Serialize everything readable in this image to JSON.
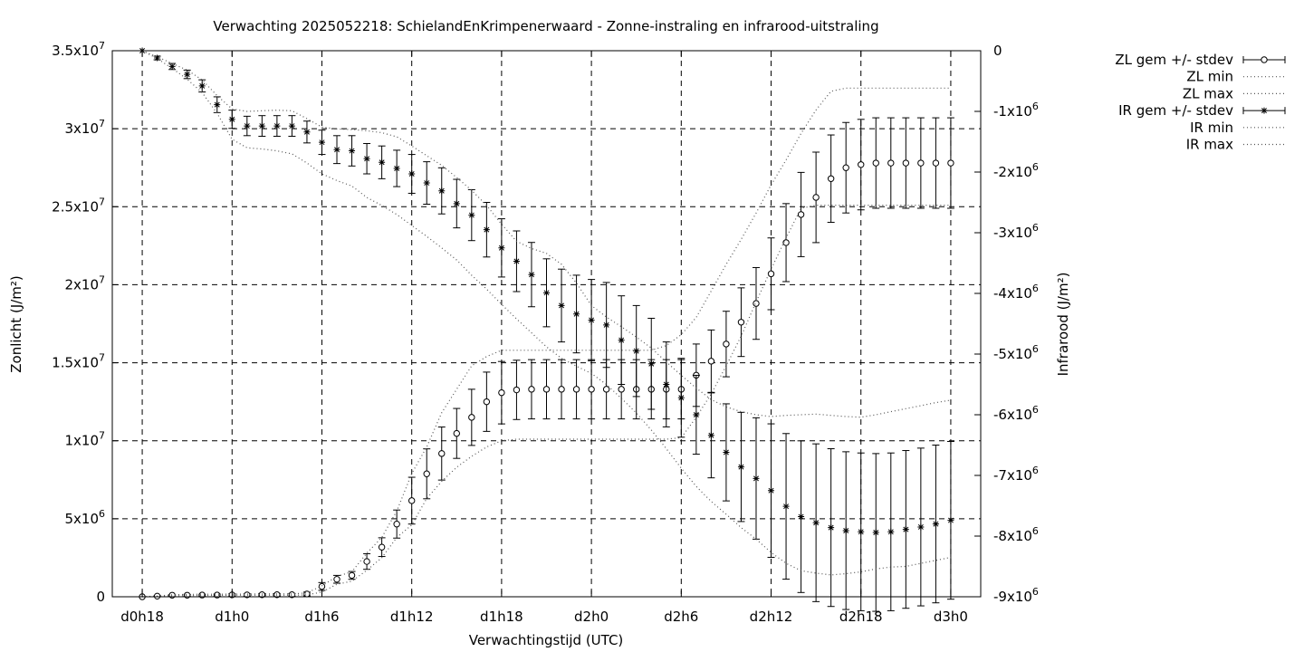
{
  "chart_data": {
    "type": "scatter",
    "title": "Verwachting 2025052218: SchielandEnKrimpenerwaard - Zonne-instraling en infrarood-uitstraling",
    "xlabel": "Verwachtingstijd (UTC)",
    "ylabel_left": "Zonlicht (J/m²)",
    "ylabel_right": "Infrarood (J/m²)",
    "x_unit": "hours",
    "xlim": [
      18,
      72
    ],
    "x_tick_values": [
      18,
      24,
      30,
      36,
      42,
      48,
      54,
      60,
      66,
      72
    ],
    "x_tick_labels": [
      "d0h18",
      "d1h0",
      "d1h6",
      "d1h12",
      "d1h18",
      "d2h0",
      "d2h6",
      "d2h12",
      "d2h18",
      "d3h0"
    ],
    "ylim_left": [
      0,
      35000000
    ],
    "y_left_tick_values": [
      0,
      5000000,
      10000000,
      15000000,
      20000000,
      25000000,
      30000000,
      35000000
    ],
    "y_left_tick_labels": [
      {
        "base": "0",
        "exp": ""
      },
      {
        "base": "5x10",
        "exp": "6"
      },
      {
        "base": "1x10",
        "exp": "7"
      },
      {
        "base": "1.5x10",
        "exp": "7"
      },
      {
        "base": "2x10",
        "exp": "7"
      },
      {
        "base": "2.5x10",
        "exp": "7"
      },
      {
        "base": "3x10",
        "exp": "7"
      },
      {
        "base": "3.5x10",
        "exp": "7"
      }
    ],
    "ylim_right": [
      -9000000,
      0
    ],
    "y_right_tick_values": [
      0,
      -1000000,
      -2000000,
      -3000000,
      -4000000,
      -5000000,
      -6000000,
      -7000000,
      -8000000,
      -9000000
    ],
    "y_right_tick_labels": [
      {
        "base": "0",
        "exp": ""
      },
      {
        "base": "-1x10",
        "exp": "6"
      },
      {
        "base": "-2x10",
        "exp": "6"
      },
      {
        "base": "-3x10",
        "exp": "6"
      },
      {
        "base": "-4x10",
        "exp": "6"
      },
      {
        "base": "-5x10",
        "exp": "6"
      },
      {
        "base": "-6x10",
        "exp": "6"
      },
      {
        "base": "-7x10",
        "exp": "6"
      },
      {
        "base": "-8x10",
        "exp": "6"
      },
      {
        "base": "-9x10",
        "exp": "6"
      }
    ],
    "grid": true,
    "legend_position": "outside-top-right",
    "x": [
      18,
      19,
      20,
      21,
      22,
      23,
      24,
      25,
      26,
      27,
      28,
      29,
      30,
      31,
      32,
      33,
      34,
      35,
      36,
      37,
      38,
      39,
      40,
      41,
      42,
      43,
      44,
      45,
      46,
      47,
      48,
      49,
      50,
      51,
      52,
      53,
      54,
      55,
      56,
      57,
      58,
      59,
      60,
      61,
      62,
      63,
      64,
      65,
      66,
      67,
      68,
      69,
      70,
      71,
      72
    ],
    "series": [
      {
        "name": "ZL gem +/- stdev",
        "axis": "left",
        "marker": "circle",
        "mean": [
          0,
          40000,
          100000,
          100000,
          110000,
          110000,
          120000,
          120000,
          130000,
          130000,
          130000,
          180000,
          660000,
          1120000,
          1370000,
          2260000,
          3180000,
          4660000,
          6160000,
          7880000,
          9180000,
          10470000,
          11500000,
          12500000,
          13080000,
          13260000,
          13300000,
          13300000,
          13300000,
          13300000,
          13300000,
          13300000,
          13300000,
          13300000,
          13300000,
          13300000,
          13300000,
          14200000,
          15100000,
          16200000,
          17600000,
          18800000,
          20700000,
          22700000,
          24500000,
          25600000,
          26800000,
          27500000,
          27700000,
          27800000,
          27800000,
          27800000,
          27800000,
          27800000,
          27800000
        ],
        "stdev": [
          0,
          20000,
          40000,
          50000,
          50000,
          60000,
          70000,
          70000,
          80000,
          80000,
          80000,
          120000,
          250000,
          250000,
          250000,
          500000,
          600000,
          900000,
          1500000,
          1600000,
          1700000,
          1600000,
          1800000,
          1900000,
          2000000,
          1900000,
          1900000,
          1900000,
          1900000,
          1900000,
          1900000,
          1900000,
          1900000,
          1900000,
          1900000,
          1900000,
          1900000,
          2000000,
          2000000,
          2100000,
          2200000,
          2300000,
          2300000,
          2500000,
          2700000,
          2900000,
          2800000,
          2900000,
          2900000,
          2900000,
          2900000,
          2900000,
          2900000,
          2900000,
          2900000
        ]
      },
      {
        "name": "ZL min",
        "axis": "left",
        "style": "dotted",
        "values": [
          0,
          20000,
          60000,
          80000,
          80000,
          90000,
          100000,
          100000,
          100000,
          100000,
          100000,
          120000,
          300000,
          800000,
          1000000,
          1700000,
          2500000,
          3800000,
          4600000,
          6300000,
          7400000,
          8300000,
          9000000,
          9600000,
          10000000,
          10100000,
          10100000,
          10100000,
          10100000,
          10100000,
          10100000,
          10100000,
          10100000,
          10100000,
          10100000,
          10100000,
          10200000,
          11500000,
          13000000,
          14800000,
          16700000,
          18900000,
          21000000,
          23000000,
          24900000,
          25100000,
          25100000,
          25100000,
          25100000,
          25100000,
          25100000,
          25100000,
          25100000,
          25100000,
          25100000
        ]
      },
      {
        "name": "ZL max",
        "axis": "left",
        "style": "dotted",
        "values": [
          0,
          40000,
          130000,
          150000,
          160000,
          160000,
          170000,
          170000,
          180000,
          180000,
          180000,
          250000,
          700000,
          1300000,
          1600000,
          2800000,
          3800000,
          5500000,
          7900000,
          9600000,
          11800000,
          13300000,
          14800000,
          15400000,
          15800000,
          15800000,
          15800000,
          15800000,
          15800000,
          15800000,
          15800000,
          15800000,
          15800000,
          15800000,
          15800000,
          16100000,
          16800000,
          17900000,
          19600000,
          21300000,
          22900000,
          24600000,
          26400000,
          28000000,
          29700000,
          31200000,
          32400000,
          32600000,
          32600000,
          32600000,
          32600000,
          32600000,
          32600000,
          32600000,
          32600000
        ]
      },
      {
        "name": "IR gem +/- stdev",
        "axis": "right",
        "marker": "star",
        "mean": [
          0,
          -120000,
          -260000,
          -390000,
          -580000,
          -890000,
          -1130000,
          -1240000,
          -1240000,
          -1240000,
          -1240000,
          -1340000,
          -1510000,
          -1630000,
          -1650000,
          -1780000,
          -1840000,
          -1940000,
          -2030000,
          -2180000,
          -2310000,
          -2520000,
          -2710000,
          -2950000,
          -3250000,
          -3470000,
          -3690000,
          -3990000,
          -4200000,
          -4340000,
          -4440000,
          -4520000,
          -4770000,
          -4950000,
          -5160000,
          -5500000,
          -5720000,
          -6000000,
          -6340000,
          -6620000,
          -6860000,
          -7050000,
          -7250000,
          -7510000,
          -7680000,
          -7780000,
          -7860000,
          -7910000,
          -7930000,
          -7940000,
          -7930000,
          -7890000,
          -7850000,
          -7800000,
          -7740000
        ],
        "stdev": [
          0,
          30000,
          50000,
          70000,
          100000,
          130000,
          150000,
          160000,
          170000,
          170000,
          170000,
          180000,
          200000,
          230000,
          250000,
          250000,
          270000,
          300000,
          320000,
          350000,
          380000,
          400000,
          420000,
          450000,
          480000,
          500000,
          530000,
          560000,
          600000,
          640000,
          670000,
          700000,
          730000,
          750000,
          750000,
          700000,
          650000,
          650000,
          700000,
          800000,
          900000,
          1000000,
          1100000,
          1200000,
          1250000,
          1300000,
          1300000,
          1300000,
          1300000,
          1300000,
          1300000,
          1300000,
          1300000,
          1300000,
          1300000
        ]
      },
      {
        "name": "IR min",
        "axis": "right",
        "style": "dotted",
        "values": [
          0,
          -130000,
          -290000,
          -470000,
          -690000,
          -1030000,
          -1460000,
          -1600000,
          -1620000,
          -1650000,
          -1700000,
          -1850000,
          -2030000,
          -2140000,
          -2230000,
          -2420000,
          -2550000,
          -2700000,
          -2880000,
          -3060000,
          -3250000,
          -3450000,
          -3700000,
          -3930000,
          -4180000,
          -4420000,
          -4650000,
          -4880000,
          -5070000,
          -5200000,
          -5320000,
          -5500000,
          -5730000,
          -5970000,
          -6250000,
          -6560000,
          -6880000,
          -7180000,
          -7430000,
          -7640000,
          -7860000,
          -8050000,
          -8270000,
          -8450000,
          -8570000,
          -8610000,
          -8640000,
          -8620000,
          -8590000,
          -8540000,
          -8510000,
          -8500000,
          -8450000,
          -8400000,
          -8350000
        ]
      },
      {
        "name": "IR max",
        "axis": "right",
        "style": "dotted",
        "values": [
          0,
          -100000,
          -210000,
          -320000,
          -480000,
          -740000,
          -960000,
          -1000000,
          -990000,
          -980000,
          -990000,
          -1120000,
          -1260000,
          -1290000,
          -1300000,
          -1320000,
          -1350000,
          -1420000,
          -1570000,
          -1730000,
          -1890000,
          -2090000,
          -2300000,
          -2550000,
          -2860000,
          -3140000,
          -3260000,
          -3340000,
          -3520000,
          -3830000,
          -4200000,
          -4390000,
          -4550000,
          -4720000,
          -4900000,
          -5130000,
          -5350000,
          -5560000,
          -5750000,
          -5870000,
          -5950000,
          -6000000,
          -6030000,
          -6010000,
          -6000000,
          -5990000,
          -6010000,
          -6030000,
          -6040000,
          -6000000,
          -5950000,
          -5900000,
          -5850000,
          -5800000,
          -5760000
        ]
      }
    ]
  }
}
